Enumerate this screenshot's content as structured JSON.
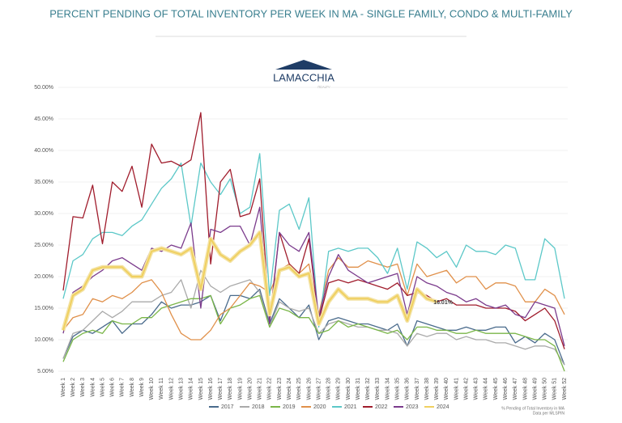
{
  "chart_data": {
    "type": "line",
    "title": "PERCENT PENDING OF TOTAL INVENTORY PER WEEK IN MA - SINGLE FAMILY, CONDO & MULTI-FAMILY",
    "logo": {
      "name": "LAMACCHIA",
      "tagline": "REALTY"
    },
    "note": [
      "% Pending of Total Inventory in MA",
      "Data per MLSPIN"
    ],
    "annotations": [
      {
        "text": "16.01%",
        "series": 7,
        "index": 38
      }
    ],
    "categories": [
      "Week 1",
      "Week 2",
      "Week 3",
      "Week 4",
      "Week 5",
      "Week 6",
      "Week 7",
      "Week 8",
      "Week 9",
      "Week 10",
      "Week 11",
      "Week 12",
      "Week 13",
      "Week 14",
      "Week 15",
      "Week 16",
      "Week 17",
      "Week 18",
      "Week 19",
      "Week 20",
      "Week 21",
      "Week 22",
      "Week 23",
      "Week 24",
      "Week 25",
      "Week 26",
      "Week 27",
      "Week 28",
      "Week 29",
      "Week 30",
      "Week 31",
      "Week 32",
      "Week 33",
      "Week 34",
      "Week 35",
      "Week 36",
      "Week 37",
      "Week 38",
      "Week 39",
      "Week 40",
      "Week 41",
      "Week 42",
      "Week 43",
      "Week 44",
      "Week 45",
      "Week 46",
      "Week 47",
      "Week 48",
      "Week 49",
      "Week 50",
      "Week 51",
      "Week 52"
    ],
    "ylim": [
      5,
      50
    ],
    "yticks": [
      {
        "value": 5,
        "label": "5.00%"
      },
      {
        "value": 10,
        "label": "10.00%"
      },
      {
        "value": 15,
        "label": "15.00%"
      },
      {
        "value": 20,
        "label": "20.00%"
      },
      {
        "value": 25,
        "label": "25.00%"
      },
      {
        "value": 30,
        "label": "30.00%"
      },
      {
        "value": 35,
        "label": "35.00%"
      },
      {
        "value": 40,
        "label": "40.00%"
      },
      {
        "value": 45,
        "label": "45.00%"
      },
      {
        "value": 50,
        "label": "50.00%"
      }
    ],
    "grid": true,
    "series": [
      {
        "name": "2017",
        "color": "#4a6b8c",
        "values": [
          7,
          10.5,
          11.5,
          11,
          12,
          13,
          11,
          12.5,
          12.5,
          14,
          16,
          15,
          15.5,
          15.5,
          16,
          17,
          13,
          17,
          17,
          16.5,
          18,
          12.5,
          16.5,
          15,
          13.5,
          15.5,
          10,
          13,
          13.5,
          13,
          12.5,
          12.5,
          12,
          11.5,
          12.5,
          9,
          13,
          12.5,
          12,
          11.5,
          11.5,
          12,
          11.5,
          11.5,
          12,
          12,
          9.5,
          10.5,
          9.5,
          11,
          10,
          6
        ]
      },
      {
        "name": "2018",
        "color": "#aaaaaa",
        "values": [
          7,
          11,
          11.5,
          13,
          14.5,
          13.5,
          14.5,
          16,
          16,
          16,
          17,
          17.5,
          19.5,
          15,
          21,
          18.5,
          17.5,
          18.5,
          19,
          19.5,
          17.5,
          12,
          16,
          15,
          14.5,
          15,
          11,
          12.5,
          13,
          12.5,
          12,
          12,
          11.5,
          11.5,
          11,
          9,
          11,
          10.5,
          11,
          11,
          10,
          10.5,
          10,
          10,
          9.5,
          9.5,
          9,
          8.5,
          9,
          9,
          8.5,
          6
        ]
      },
      {
        "name": "2019",
        "color": "#7ab648",
        "values": [
          6.5,
          10,
          11,
          11.5,
          11,
          13,
          12.5,
          12.5,
          13.5,
          13.5,
          15,
          15.5,
          16,
          16.5,
          16.5,
          17,
          12.5,
          15,
          15.5,
          16.5,
          17,
          12,
          15,
          14.5,
          13.5,
          13.5,
          11,
          11.5,
          13,
          12,
          12.5,
          12,
          11.5,
          11,
          11.5,
          10,
          12,
          12,
          11.5,
          11.5,
          11,
          11,
          11.5,
          11,
          11,
          11,
          11,
          10.5,
          10,
          10,
          9,
          5
        ]
      },
      {
        "name": "2020",
        "color": "#e0904a",
        "values": [
          11.5,
          13.5,
          14,
          16.5,
          16,
          17,
          16.5,
          17.5,
          19,
          19.5,
          17.5,
          14,
          11,
          10,
          10,
          11.5,
          14,
          15,
          17,
          19,
          18.5,
          17.5,
          21,
          22,
          20.5,
          22,
          14,
          21,
          23,
          21.5,
          21.5,
          22.5,
          22,
          21.5,
          22,
          17,
          22,
          20,
          20.5,
          21,
          19,
          20,
          20,
          18,
          19,
          19,
          18.5,
          16,
          16,
          18,
          17,
          14
        ]
      },
      {
        "name": "2021",
        "color": "#5cc8c8",
        "values": [
          16.5,
          22.5,
          23.5,
          26,
          27,
          27,
          26.5,
          28,
          29,
          31.5,
          34,
          35.5,
          38,
          28,
          38,
          35,
          33,
          35.5,
          30,
          31,
          39.5,
          17,
          30.5,
          31.5,
          27.5,
          32.5,
          12,
          24,
          24.5,
          24,
          24.5,
          24.5,
          23,
          20.5,
          24.5,
          18,
          25.5,
          24.5,
          23,
          24,
          21.5,
          25,
          24,
          24,
          23.5,
          25,
          24.5,
          19.5,
          19.5,
          26,
          24.5,
          16.5
        ]
      },
      {
        "name": "2022",
        "color": "#a01c2c",
        "values": [
          17.8,
          29.5,
          29.3,
          34.5,
          25.2,
          35,
          33.5,
          37.5,
          31,
          41,
          38,
          38.3,
          37.5,
          38.5,
          46,
          22,
          35,
          37,
          29.5,
          30,
          35.5,
          13,
          27,
          22,
          20.5,
          26,
          13,
          19,
          19.5,
          19,
          19.5,
          19,
          18.5,
          18,
          19,
          17,
          17.5,
          17,
          16,
          16.5,
          15.5,
          15.5,
          15.5,
          15,
          15,
          15,
          14.5,
          13,
          14,
          15,
          13,
          8.5
        ]
      },
      {
        "name": "2023",
        "color": "#7b3b8c",
        "values": [
          11,
          17.5,
          18.5,
          20,
          21,
          22.5,
          23,
          22,
          21,
          24.5,
          24,
          25,
          24.5,
          28.5,
          15,
          27.5,
          27,
          28,
          28,
          25,
          31,
          12.5,
          27,
          25,
          24,
          27,
          13.5,
          20,
          23.5,
          21,
          20,
          19,
          19.5,
          20,
          20.5,
          14,
          20,
          19,
          18.5,
          17.5,
          17,
          16,
          16.5,
          15.5,
          15,
          15.5,
          14,
          13.5,
          16,
          15.5,
          15,
          9
        ]
      },
      {
        "name": "2024",
        "color": "#f0d060",
        "values": [
          11.5,
          17,
          18,
          21,
          21.5,
          21.5,
          21.5,
          20,
          20,
          24,
          24.5,
          24,
          23.5,
          24.5,
          18,
          26,
          23.5,
          22.5,
          24,
          25,
          27,
          14,
          21,
          21.5,
          20,
          20.5,
          12.5,
          16,
          18,
          16.5,
          16.5,
          16.5,
          16,
          16,
          17,
          13,
          18,
          16.5,
          16.01,
          null,
          null,
          null,
          null,
          null,
          null,
          null,
          null,
          null,
          null,
          null,
          null,
          null
        ]
      }
    ]
  }
}
